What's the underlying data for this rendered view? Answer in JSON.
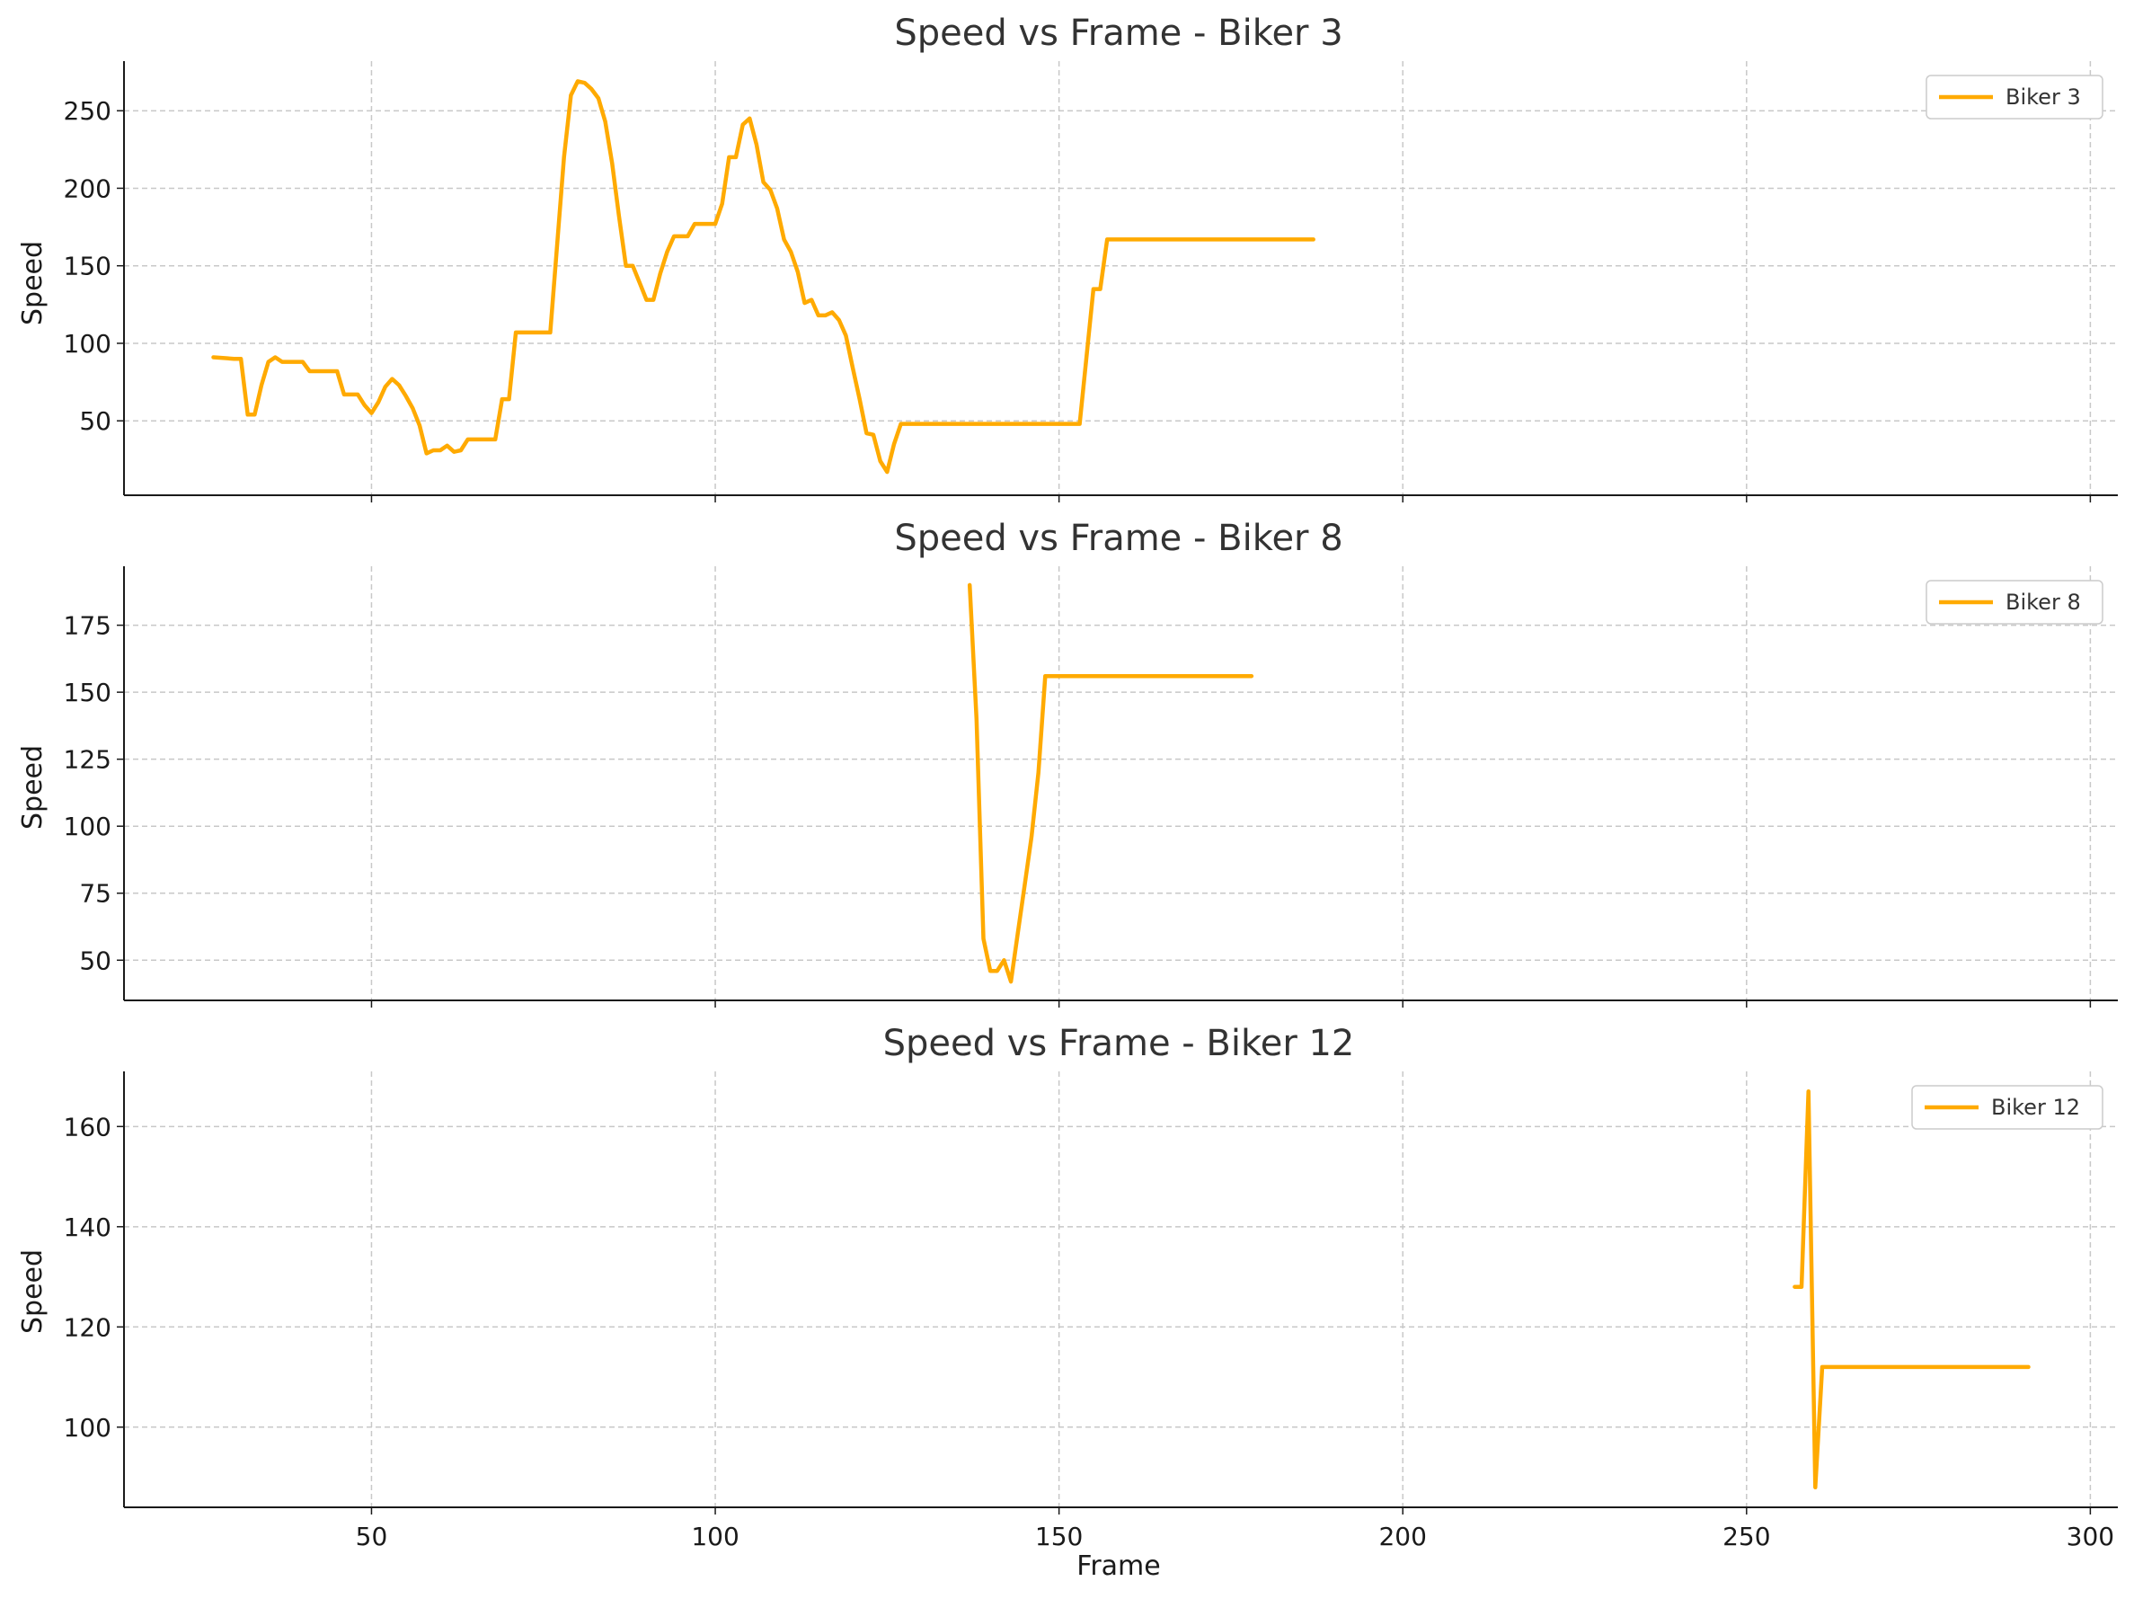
{
  "colors": {
    "series": "#FFAA00",
    "grid": "#c8c8c8",
    "axis": "#1a1a1a",
    "title": "#333333"
  },
  "chart_data": [
    {
      "type": "line",
      "title": "Speed vs Frame - Biker 3",
      "xlabel": "",
      "ylabel": "Speed",
      "xlim": [
        14,
        304
      ],
      "ylim": [
        2,
        282
      ],
      "xticks": [
        50,
        100,
        150,
        200,
        250,
        300
      ],
      "yticks": [
        50,
        100,
        150,
        200,
        250
      ],
      "grid": true,
      "legend": "top-right",
      "series": [
        {
          "name": "Biker 3",
          "x": [
            27,
            30,
            31,
            32,
            33,
            34,
            35,
            36,
            37,
            40,
            41,
            45,
            46,
            48,
            49,
            50,
            51,
            52,
            53,
            54,
            55,
            56,
            57,
            58,
            59,
            60,
            61,
            62,
            63,
            64,
            68,
            69,
            70,
            71,
            76,
            78,
            79,
            80,
            81,
            82,
            83,
            84,
            85,
            86,
            87,
            88,
            89,
            90,
            91,
            92,
            93,
            94,
            95,
            96,
            97,
            98,
            99,
            100,
            101,
            102,
            103,
            104,
            105,
            106,
            107,
            108,
            109,
            110,
            111,
            112,
            113,
            114,
            115,
            116,
            117,
            118,
            119,
            120,
            121,
            122,
            123,
            124,
            125,
            126,
            127,
            153,
            155,
            156,
            157,
            187
          ],
          "y": [
            91,
            90,
            90,
            54,
            54,
            73,
            88,
            91,
            88,
            88,
            82,
            82,
            67,
            67,
            60,
            55,
            62,
            72,
            77,
            73,
            66,
            58,
            47,
            29,
            31,
            31,
            34,
            30,
            31,
            38,
            38,
            64,
            64,
            107,
            107,
            220,
            260,
            269,
            268,
            264,
            258,
            243,
            216,
            182,
            150,
            150,
            139,
            128,
            128,
            145,
            159,
            169,
            169,
            169,
            177,
            177,
            177,
            177,
            190,
            220,
            220,
            241,
            245,
            228,
            204,
            199,
            187,
            167,
            159,
            146,
            126,
            128,
            118,
            118,
            120,
            115,
            105,
            84,
            64,
            42,
            41,
            24,
            17,
            35,
            48,
            48,
            135,
            135,
            167,
            167
          ]
        }
      ]
    },
    {
      "type": "line",
      "title": "Speed vs Frame - Biker 8",
      "xlabel": "",
      "ylabel": "Speed",
      "xlim": [
        14,
        304
      ],
      "ylim": [
        35,
        197
      ],
      "xticks": [
        50,
        100,
        150,
        200,
        250,
        300
      ],
      "yticks": [
        50,
        75,
        100,
        125,
        150,
        175
      ],
      "grid": true,
      "legend": "top-right",
      "series": [
        {
          "name": "Biker 8",
          "x": [
            137,
            138,
            139,
            140,
            141,
            142,
            143,
            144,
            145,
            146,
            147,
            148,
            178
          ],
          "y": [
            190,
            140,
            58,
            46,
            46,
            50,
            42,
            60,
            78,
            96,
            120,
            156,
            156
          ]
        }
      ]
    },
    {
      "type": "line",
      "title": "Speed vs Frame - Biker 12",
      "xlabel": "Frame",
      "ylabel": "Speed",
      "xlim": [
        14,
        304
      ],
      "ylim": [
        84,
        171
      ],
      "xticks": [
        50,
        100,
        150,
        200,
        250,
        300
      ],
      "yticks": [
        100,
        120,
        140,
        160
      ],
      "grid": true,
      "legend": "top-right",
      "series": [
        {
          "name": "Biker 12",
          "x": [
            257,
            258,
            259,
            260,
            261,
            291
          ],
          "y": [
            128,
            128,
            167,
            88,
            112,
            112
          ]
        }
      ]
    }
  ]
}
